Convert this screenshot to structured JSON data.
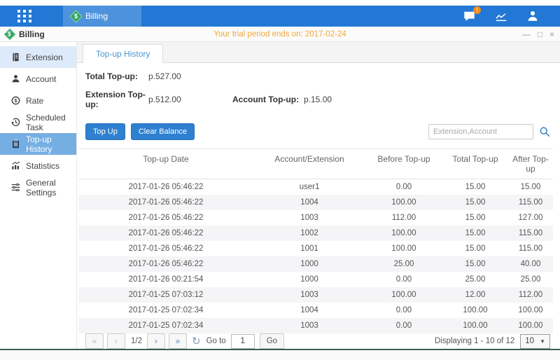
{
  "colors": {
    "topbar": "#2278d4",
    "topbar_tab": "#4d92dc",
    "dollar_green": "#2fa45f",
    "badge": "#f08c1e",
    "orange": "#f0a63c",
    "sidebar_hover": "#ddeaf9",
    "sidebar_active": "#75aee3",
    "tab_text": "#4796d2",
    "button": "#2f80d0",
    "bottom_line": "#3d5a58"
  },
  "topbar": {
    "tab_label": "Billing",
    "notification_badge": "!"
  },
  "titlebar": {
    "app_title": "Billing",
    "trial_notice": "Your trial period ends on: 2017-02-24"
  },
  "icons": {
    "minimize": "—",
    "maximize": "□",
    "close": "×",
    "first_page": "«",
    "prev_page": "‹",
    "next_page": "›",
    "last_page": "»",
    "refresh": "↻",
    "dropdown_caret": "▼"
  },
  "sidebar": {
    "items": [
      {
        "id": "extension",
        "label": "Extension",
        "icon": "extension",
        "active": false,
        "hover": true
      },
      {
        "id": "account",
        "label": "Account",
        "icon": "account",
        "active": false,
        "hover": false
      },
      {
        "id": "rate",
        "label": "Rate",
        "icon": "rate",
        "active": false,
        "hover": false
      },
      {
        "id": "scheduled-task",
        "label": "Scheduled Task",
        "icon": "scheduled-task",
        "active": false,
        "hover": false
      },
      {
        "id": "topup-history",
        "label": "Top-up History",
        "icon": "topup-history",
        "active": true,
        "hover": false
      },
      {
        "id": "statistics",
        "label": "Statistics",
        "icon": "statistics",
        "active": false,
        "hover": false
      },
      {
        "id": "general-settings",
        "label": "General Settings",
        "icon": "general-settings",
        "active": false,
        "hover": false
      }
    ]
  },
  "main": {
    "tab_label": "Top-up History",
    "totals": {
      "total_label": "Total Top-up:",
      "total_value": "p.527.00",
      "extension_label": "Extension Top-up:",
      "extension_value": "p.512.00",
      "account_label": "Account Top-up:",
      "account_value": "p.15.00"
    },
    "actions": {
      "top_up": "Top Up",
      "clear_balance": "Clear Balance"
    },
    "search": {
      "placeholder": "Extension,Account"
    },
    "table": {
      "columns": [
        "Top-up Date",
        "Account/Extension",
        "Before Top-up",
        "Total Top-up",
        "After Top-up"
      ],
      "rows": [
        [
          "2017-01-26 05:46:22",
          "user1",
          "0.00",
          "15.00",
          "15.00"
        ],
        [
          "2017-01-26 05:46:22",
          "1004",
          "100.00",
          "15.00",
          "115.00"
        ],
        [
          "2017-01-26 05:46:22",
          "1003",
          "112.00",
          "15.00",
          "127.00"
        ],
        [
          "2017-01-26 05:46:22",
          "1002",
          "100.00",
          "15.00",
          "115.00"
        ],
        [
          "2017-01-26 05:46:22",
          "1001",
          "100.00",
          "15.00",
          "115.00"
        ],
        [
          "2017-01-26 05:46:22",
          "1000",
          "25.00",
          "15.00",
          "40.00"
        ],
        [
          "2017-01-26 00:21:54",
          "1000",
          "0.00",
          "25.00",
          "25.00"
        ],
        [
          "2017-01-25 07:03:12",
          "1003",
          "100.00",
          "12.00",
          "112.00"
        ],
        [
          "2017-01-25 07:02:34",
          "1004",
          "0.00",
          "100.00",
          "100.00"
        ],
        [
          "2017-01-25 07:02:34",
          "1003",
          "0.00",
          "100.00",
          "100.00"
        ]
      ]
    },
    "pagination": {
      "page_indicator": "1/2",
      "goto_label": "Go to",
      "goto_value": "1",
      "go_label": "Go",
      "displaying": "Displaying 1 - 10 of 12",
      "page_size": "10"
    }
  }
}
